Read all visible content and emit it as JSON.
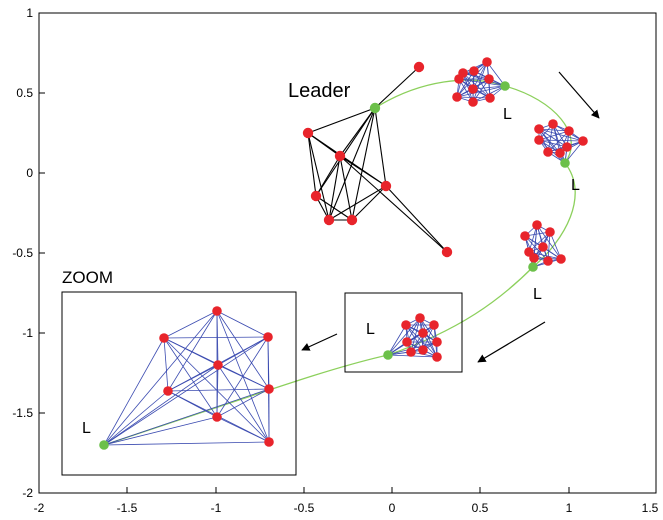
{
  "labels": {
    "leader": "Leader",
    "zoom": "ZOOM",
    "L": "L"
  },
  "colors": {
    "node_red": "#e8242b",
    "node_green": "#6cc04a",
    "edge_black": "#000000",
    "edge_blue": "#3b4bb0",
    "trajectory": "#8cd05c",
    "frame": "#000000"
  },
  "axes": {
    "xlim": [
      -2,
      1.5
    ],
    "ylim": [
      -2,
      1
    ],
    "x_ticks": [
      "-2",
      "-1.5",
      "-1",
      "-0.5",
      "0",
      "0.5",
      "1",
      "1.5"
    ],
    "y_ticks": [
      "1",
      "0.5",
      "0",
      "-0.5",
      "-1",
      "-1.5",
      "-2"
    ]
  }
}
